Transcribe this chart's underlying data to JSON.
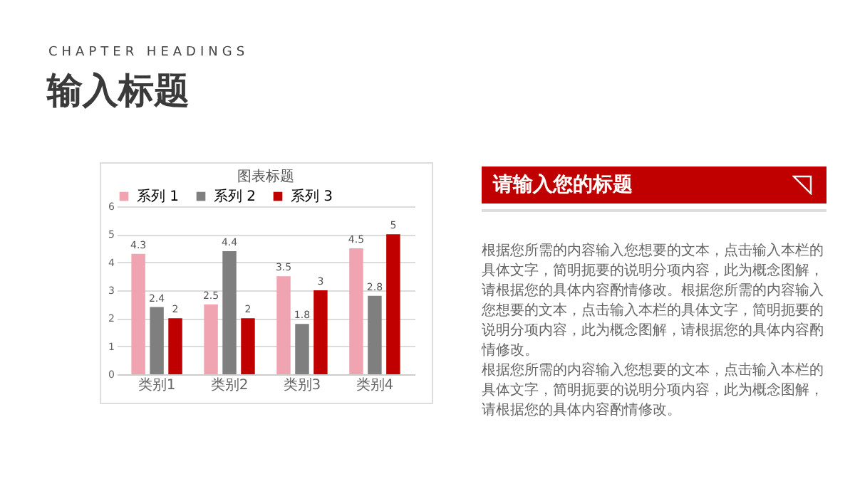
{
  "chart_data": {
    "type": "bar",
    "title": "图表标题",
    "categories": [
      "类别1",
      "类别2",
      "类别3",
      "类别4"
    ],
    "series": [
      {
        "name": "系列 1",
        "color": "#f0a3b0",
        "values": [
          4.3,
          2.5,
          3.5,
          4.5
        ]
      },
      {
        "name": "系列 2",
        "color": "#7f7f7f",
        "values": [
          2.4,
          4.4,
          1.8,
          2.8
        ]
      },
      {
        "name": "系列 3",
        "color": "#c00000",
        "values": [
          2,
          2,
          3,
          5
        ]
      }
    ],
    "ylim": [
      0,
      6
    ],
    "yticks": [
      0,
      1,
      2,
      3,
      4,
      5,
      6
    ],
    "grid": "y",
    "legend": "top",
    "data_labels": true,
    "annotations": [
      "CHAPTER HEADINGS",
      "输入标题",
      "请输入您的标题",
      "根据您所需的内容输入您想要的文本，点击输入本栏的具体文字，简明扼要的说明分项内容，此为概念图解，请根据您的具体内容酌情修改。根据您所需的内容输入您想要的文本，点击输入本栏的具体文字，简明扼要的说明分项内容，此为概念图解，请根据您的具体内容酌情修改。",
      "根据您所需的内容输入您想要的文本，点击输入本栏的具体文字，简明扼要的说明分项内容，此为概念图解，请根据您的具体内容酌情修改。"
    ]
  }
}
